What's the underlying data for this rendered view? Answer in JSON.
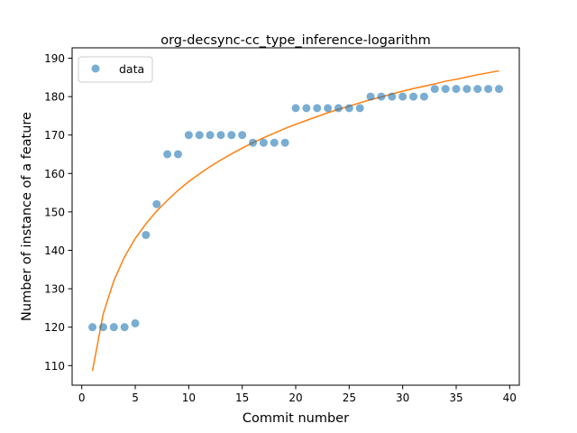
{
  "chart_data": {
    "type": "scatter",
    "title": "org-decsync-cc_type_inference-logarithm",
    "xlabel": "Commit number",
    "ylabel": "Number of instance of a feature",
    "xlim": [
      -0.9,
      40.9
    ],
    "ylim": [
      104.9,
      192.7
    ],
    "xticks": [
      0,
      5,
      10,
      15,
      20,
      25,
      30,
      35,
      40
    ],
    "yticks": [
      110,
      120,
      130,
      140,
      150,
      160,
      170,
      180,
      190
    ],
    "grid": false,
    "legend_position": "top-left",
    "series": [
      {
        "name": "data",
        "kind": "scatter",
        "color": "#1f77b4",
        "x": [
          1,
          2,
          3,
          4,
          5,
          6,
          7,
          8,
          9,
          10,
          11,
          12,
          13,
          14,
          15,
          16,
          17,
          18,
          19,
          20,
          21,
          22,
          23,
          24,
          25,
          26,
          27,
          28,
          29,
          30,
          31,
          32,
          33,
          34,
          35,
          36,
          37,
          38,
          39
        ],
        "y": [
          120,
          120,
          120,
          120,
          121,
          144,
          152,
          165,
          165,
          170,
          170,
          170,
          170,
          170,
          170,
          168,
          168,
          168,
          168,
          177,
          177,
          177,
          177,
          177,
          177,
          177,
          180,
          180,
          180,
          180,
          180,
          180,
          182,
          182,
          182,
          182,
          182,
          182,
          182
        ]
      },
      {
        "kind": "line",
        "color": "#ff7f0e",
        "x": [
          1,
          2,
          3,
          4,
          5,
          6,
          7,
          8,
          9,
          10,
          11,
          12,
          13,
          14,
          15,
          16,
          17,
          18,
          19,
          20,
          21,
          22,
          23,
          24,
          25,
          26,
          27,
          28,
          29,
          30,
          31,
          32,
          33,
          34,
          35,
          36,
          37,
          38,
          39
        ],
        "y": [
          108.6,
          123.4,
          132.1,
          138.3,
          143.1,
          146.9,
          150.2,
          153.0,
          155.6,
          157.9,
          159.9,
          161.8,
          163.5,
          165.1,
          166.6,
          168.0,
          169.3,
          170.5,
          171.7,
          172.8,
          173.8,
          174.8,
          175.8,
          176.7,
          177.5,
          178.4,
          179.2,
          179.9,
          180.7,
          181.4,
          182.1,
          182.7,
          183.3,
          184.0,
          184.5,
          185.1,
          185.7,
          186.2,
          186.7
        ]
      }
    ]
  }
}
